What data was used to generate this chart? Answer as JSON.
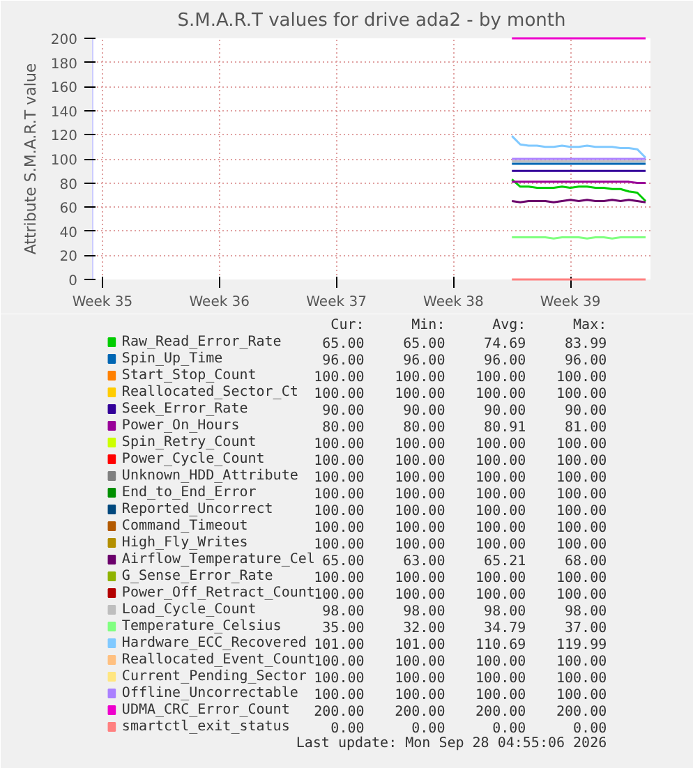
{
  "chart_data": {
    "type": "line",
    "title": "S.M.A.R.T values for drive ada2 - by month",
    "ylabel": "Attribute S.M.A.R.T value",
    "x": [
      "2026-09-19T22:00",
      "2026-09-20T10:00",
      "2026-09-20T22:00",
      "2026-09-21T10:00",
      "2026-09-21T22:00",
      "2026-09-22T10:00",
      "2026-09-22T22:00",
      "2026-09-23T10:00",
      "2026-09-23T22:00",
      "2026-09-24T10:00",
      "2026-09-24T22:00",
      "2026-09-25T10:00",
      "2026-09-25T22:00",
      "2026-09-26T10:00",
      "2026-09-26T22:00",
      "2026-09-27T10:00",
      "2026-09-27T22:00"
    ],
    "xlim": [
      "2026-08-25T20:00",
      "2026-09-28T05:00"
    ],
    "xticks": [
      {
        "value": "2026-08-26T10:00",
        "label": "Week 35"
      },
      {
        "value": "2026-09-02T10:00",
        "label": "Week 36"
      },
      {
        "value": "2026-09-09T10:00",
        "label": "Week 37"
      },
      {
        "value": "2026-09-16T10:00",
        "label": "Week 38"
      },
      {
        "value": "2026-09-23T10:00",
        "label": "Week 39"
      }
    ],
    "ylim": [
      0,
      200
    ],
    "yticks": [
      0,
      20,
      40,
      60,
      80,
      100,
      120,
      140,
      160,
      180,
      200
    ],
    "grid": true,
    "legend": "bottom",
    "line_style": "solid",
    "marker": "none",
    "series": [
      {
        "name": "Raw_Read_Error_Rate",
        "color": "#00cc00",
        "values": [
          83,
          77,
          77,
          76,
          76,
          76,
          77,
          76,
          77,
          77,
          76,
          76,
          75,
          75,
          73,
          72,
          65
        ]
      },
      {
        "name": "Spin_Up_Time",
        "color": "#0066b3",
        "values": [
          96,
          96,
          96,
          96,
          96,
          96,
          96,
          96,
          96,
          96,
          96,
          96,
          96,
          96,
          96,
          96,
          96
        ]
      },
      {
        "name": "Start_Stop_Count",
        "color": "#ff8000",
        "values": [
          null,
          null,
          null,
          null,
          null,
          null,
          null,
          null,
          null,
          null,
          null,
          null,
          null,
          null,
          null,
          null,
          null
        ]
      },
      {
        "name": "Reallocated_Sector_Ct",
        "color": "#ffcc00",
        "values": [
          null,
          null,
          null,
          null,
          null,
          null,
          null,
          null,
          null,
          null,
          null,
          null,
          null,
          null,
          null,
          null,
          null
        ]
      },
      {
        "name": "Seek_Error_Rate",
        "color": "#330099",
        "values": [
          90,
          90,
          90,
          90,
          90,
          90,
          90,
          90,
          90,
          90,
          90,
          90,
          90,
          90,
          90,
          90,
          90
        ]
      },
      {
        "name": "Power_On_Hours",
        "color": "#990099",
        "values": [
          81,
          81,
          81,
          81,
          81,
          81,
          81,
          81,
          81,
          81,
          81,
          81,
          81,
          81,
          81,
          80,
          80
        ]
      },
      {
        "name": "Spin_Retry_Count",
        "color": "#ccff00",
        "values": [
          null,
          null,
          null,
          null,
          null,
          null,
          null,
          null,
          null,
          null,
          null,
          null,
          null,
          null,
          null,
          null,
          null
        ]
      },
      {
        "name": "Power_Cycle_Count",
        "color": "#ff0000",
        "values": [
          null,
          null,
          null,
          null,
          null,
          null,
          null,
          null,
          null,
          null,
          null,
          null,
          null,
          null,
          null,
          null,
          null
        ]
      },
      {
        "name": "Unknown_HDD_Attribute",
        "color": "#808080",
        "values": [
          null,
          null,
          null,
          null,
          null,
          null,
          null,
          null,
          null,
          null,
          null,
          null,
          null,
          null,
          null,
          null,
          null
        ]
      },
      {
        "name": "End_to_End_Error",
        "color": "#008f00",
        "values": [
          null,
          null,
          null,
          null,
          null,
          null,
          null,
          null,
          null,
          null,
          null,
          null,
          null,
          null,
          null,
          null,
          null
        ]
      },
      {
        "name": "Reported_Uncorrect",
        "color": "#00487d",
        "values": [
          null,
          null,
          null,
          null,
          null,
          null,
          null,
          null,
          null,
          null,
          null,
          null,
          null,
          null,
          null,
          null,
          null
        ]
      },
      {
        "name": "Command_Timeout",
        "color": "#b35a00",
        "values": [
          null,
          null,
          null,
          null,
          null,
          null,
          null,
          null,
          null,
          null,
          null,
          null,
          null,
          null,
          null,
          null,
          null
        ]
      },
      {
        "name": "High_Fly_Writes",
        "color": "#b38f00",
        "values": [
          null,
          null,
          null,
          null,
          null,
          null,
          null,
          null,
          null,
          null,
          null,
          null,
          null,
          null,
          null,
          null,
          null
        ]
      },
      {
        "name": "Airflow_Temperature_Cel",
        "color": "#6b006b",
        "values": [
          65,
          64,
          65,
          65,
          65,
          64,
          65,
          66,
          65,
          66,
          65,
          65,
          66,
          65,
          66,
          65,
          64
        ]
      },
      {
        "name": "G_Sense_Error_Rate",
        "color": "#8fb300",
        "values": [
          null,
          null,
          null,
          null,
          null,
          null,
          null,
          null,
          null,
          null,
          null,
          null,
          null,
          null,
          null,
          null,
          null
        ]
      },
      {
        "name": "Power_Off_Retract_Count",
        "color": "#b30000",
        "values": [
          null,
          null,
          null,
          null,
          null,
          null,
          null,
          null,
          null,
          null,
          null,
          null,
          null,
          null,
          null,
          null,
          null
        ]
      },
      {
        "name": "Load_Cycle_Count",
        "color": "#bebebe",
        "values": [
          98,
          98,
          98,
          98,
          98,
          98,
          98,
          98,
          98,
          98,
          98,
          98,
          98,
          98,
          98,
          98,
          98
        ]
      },
      {
        "name": "Temperature_Celsius",
        "color": "#80ff80",
        "values": [
          35,
          35,
          35,
          35,
          35,
          34,
          35,
          35,
          35,
          34,
          35,
          35,
          34,
          35,
          35,
          35,
          35
        ]
      },
      {
        "name": "Hardware_ECC_Recovered",
        "color": "#80c9ff",
        "values": [
          119,
          112,
          111,
          111,
          110,
          110,
          111,
          110,
          110,
          111,
          110,
          110,
          110,
          109,
          109,
          108,
          101
        ]
      },
      {
        "name": "Reallocated_Event_Count",
        "color": "#ffc080",
        "values": [
          null,
          null,
          null,
          null,
          null,
          null,
          null,
          null,
          null,
          null,
          null,
          null,
          null,
          null,
          null,
          null,
          null
        ]
      },
      {
        "name": "Current_Pending_Sector",
        "color": "#ffe680",
        "values": [
          null,
          null,
          null,
          null,
          null,
          null,
          null,
          null,
          null,
          null,
          null,
          null,
          null,
          null,
          null,
          null,
          null
        ]
      },
      {
        "name": "Offline_Uncorrectable",
        "color": "#aa80ff",
        "values": [
          100,
          100,
          100,
          100,
          100,
          100,
          100,
          100,
          100,
          100,
          100,
          100,
          100,
          100,
          100,
          100,
          100
        ]
      },
      {
        "name": "UDMA_CRC_Error_Count",
        "color": "#ee00cc",
        "values": [
          200,
          200,
          200,
          200,
          200,
          200,
          200,
          200,
          200,
          200,
          200,
          200,
          200,
          200,
          200,
          200,
          200
        ]
      },
      {
        "name": "smartctl_exit_status",
        "color": "#ff8080",
        "values": [
          0,
          0,
          0,
          0,
          0,
          0,
          0,
          0,
          0,
          0,
          0,
          0,
          0,
          0,
          0,
          0,
          0
        ]
      }
    ],
    "annotations": [
      "Cur: Min: Avg: Max:",
      "65.00 65.00 74.69 83.99",
      "96.00 96.00 96.00 96.00",
      "100.00 100.00 100.00 100.00",
      "100.00 100.00 100.00 100.00",
      "90.00 90.00 90.00 90.00",
      "80.00 80.00 80.91 81.00",
      "100.00 100.00 100.00 100.00",
      "100.00 100.00 100.00 100.00",
      "100.00 100.00 100.00 100.00",
      "100.00 100.00 100.00 100.00",
      "100.00 100.00 100.00 100.00",
      "100.00 100.00 100.00 100.00",
      "100.00 100.00 100.00 100.00",
      "65.00 63.00 65.21 68.00",
      "100.00 100.00 100.00 100.00",
      "100.00 100.00 100.00 100.00",
      "98.00 98.00 98.00 98.00",
      "35.00 32.00 34.79 37.00",
      "101.00 101.00 110.69 119.99",
      "100.00 100.00 100.00 100.00",
      "100.00 100.00 100.00 100.00",
      "100.00 100.00 100.00 100.00",
      "200.00 200.00 200.00 200.00",
      "0.00 0.00 0.00 0.00",
      "Last update: Mon Sep 28 04:55:06 2026"
    ]
  }
}
